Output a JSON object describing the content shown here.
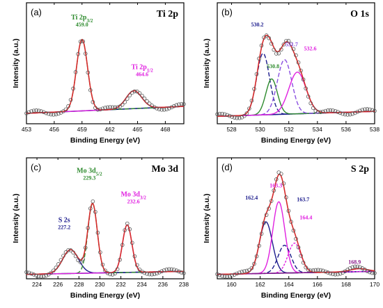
{
  "chart_data": [
    {
      "type": "line",
      "panel_label": "(a)",
      "element_label": "Ti 2p",
      "xlabel": "Binding Energy (eV)",
      "ylabel": "Intensity (a.u.)",
      "xlim": [
        453,
        470
      ],
      "x_ticks": [
        453,
        456,
        459,
        462,
        465,
        468
      ],
      "x_reversed": false,
      "baseline": 0.14,
      "peaks": [
        {
          "name": "Ti 2p3/2",
          "center": 459.0,
          "height": 0.72,
          "width": 0.6,
          "color": "#2e8b2e",
          "dash": "6,3"
        },
        {
          "name": "Ti 2p1/2",
          "center": 464.6,
          "height": 0.18,
          "width": 0.85,
          "color": "#e020e0",
          "dash": "none"
        }
      ],
      "annotations": [
        {
          "label": "Ti 2p",
          "sub": "3/2",
          "value": "459.0",
          "color": "#2e8b2e",
          "x": 459.0,
          "y": 1.05
        },
        {
          "label": "Ti 2p",
          "sub": "1/2",
          "value": "464.6",
          "color": "#e020e0",
          "x": 465.5,
          "y": 0.55
        }
      ]
    },
    {
      "type": "line",
      "panel_label": "(b)",
      "element_label": "O 1s",
      "xlabel": "Binding Energy (eV)",
      "ylabel": "Intensity (a.u.)",
      "xlim": [
        527,
        538
      ],
      "x_ticks": [
        528,
        530,
        532,
        534,
        536,
        538
      ],
      "x_reversed": false,
      "baseline": 0.1,
      "peaks": [
        {
          "name": "530.2",
          "center": 530.2,
          "height": 0.62,
          "width": 0.45,
          "color": "#1a1a8c",
          "dash": "6,3"
        },
        {
          "name": "530.8",
          "center": 530.8,
          "height": 0.36,
          "width": 0.4,
          "color": "#2e8b2e",
          "dash": "none"
        },
        {
          "name": "531.7",
          "center": 531.7,
          "height": 0.55,
          "width": 0.5,
          "color": "#8a4fe0",
          "dash": "6,3"
        },
        {
          "name": "532.6",
          "center": 532.6,
          "height": 0.42,
          "width": 0.6,
          "color": "#e020e0",
          "dash": "none"
        }
      ],
      "annotations": [
        {
          "label": "530.2",
          "value": "",
          "color": "#1a1a8c",
          "x": 529.8,
          "y": 0.98
        },
        {
          "label": "530.8",
          "value": "",
          "color": "#2e8b2e",
          "x": 530.9,
          "y": 0.56
        },
        {
          "label": "531.7",
          "value": "",
          "color": "#8a4fe0",
          "x": 532.2,
          "y": 0.78
        },
        {
          "label": "532.6",
          "value": "",
          "color": "#e020e0",
          "x": 533.5,
          "y": 0.74
        }
      ]
    },
    {
      "type": "line",
      "panel_label": "(c)",
      "element_label": "Mo 3d",
      "xlabel": "Binding Energy (eV)",
      "ylabel": "Intensity (a.u.)",
      "xlim": [
        223,
        238
      ],
      "x_ticks": [
        224,
        226,
        228,
        230,
        232,
        234,
        236,
        238
      ],
      "x_reversed": false,
      "baseline": 0.06,
      "peaks": [
        {
          "name": "S 2s",
          "center": 227.2,
          "height": 0.24,
          "width": 0.75,
          "color": "#1a1a8c",
          "dash": "none"
        },
        {
          "name": "Mo 3d5/2",
          "center": 229.3,
          "height": 0.7,
          "width": 0.45,
          "color": "#2e8b2e",
          "dash": "6,3"
        },
        {
          "name": "Mo 3d3/2",
          "center": 232.6,
          "height": 0.48,
          "width": 0.45,
          "color": "#e020e0",
          "dash": "none"
        }
      ],
      "annotations": [
        {
          "label": "S 2s",
          "sub": "",
          "value": "227.2",
          "color": "#1a1a8c",
          "x": 226.6,
          "y": 0.57
        },
        {
          "label": "Mo 3d",
          "sub": "5/2",
          "value": "229.3",
          "color": "#2e8b2e",
          "x": 229.0,
          "y": 1.07
        },
        {
          "label": "Mo 3d",
          "sub": "3/2",
          "value": "232.6",
          "color": "#e020e0",
          "x": 233.2,
          "y": 0.83
        }
      ]
    },
    {
      "type": "line",
      "panel_label": "(d)",
      "element_label": "S 2p",
      "xlabel": "Binding Energy (eV)",
      "ylabel": "Intensity (a.u.)",
      "xlim": [
        159,
        170
      ],
      "x_ticks": [
        160,
        162,
        164,
        166,
        168,
        170
      ],
      "x_reversed": false,
      "baseline": 0.06,
      "peaks": [
        {
          "name": "162.4",
          "center": 162.4,
          "height": 0.52,
          "width": 0.45,
          "color": "#1a1a8c",
          "dash": "none"
        },
        {
          "name": "163.3",
          "center": 163.3,
          "height": 0.72,
          "width": 0.42,
          "color": "#e020e0",
          "dash": "none"
        },
        {
          "name": "163.7",
          "center": 163.7,
          "height": 0.28,
          "width": 0.45,
          "color": "#1a1a8c",
          "dash": "6,3"
        },
        {
          "name": "164.4",
          "center": 164.4,
          "height": 0.3,
          "width": 0.45,
          "color": "#e020e0",
          "dash": "3,2"
        },
        {
          "name": "168.9",
          "center": 168.9,
          "height": 0.03,
          "width": 0.6,
          "color": "#8a1a8a",
          "dash": "none"
        }
      ],
      "annotations": [
        {
          "label": "162.4",
          "value": "",
          "color": "#1a1a8c",
          "x": 161.4,
          "y": 0.8
        },
        {
          "label": "163.3",
          "value": "",
          "color": "#e020e0",
          "x": 163.1,
          "y": 0.92
        },
        {
          "label": "163.7",
          "value": "",
          "color": "#1a1a8c",
          "x": 165.0,
          "y": 0.78
        },
        {
          "label": "164.4",
          "value": "",
          "color": "#e020e0",
          "x": 165.2,
          "y": 0.6
        },
        {
          "label": "168.9",
          "value": "",
          "color": "#8a1a8a",
          "x": 168.6,
          "y": 0.15
        }
      ]
    }
  ],
  "colors": {
    "envelope": "#d62a2a",
    "background": "#1a1a8c",
    "raw_points": "#555555"
  }
}
